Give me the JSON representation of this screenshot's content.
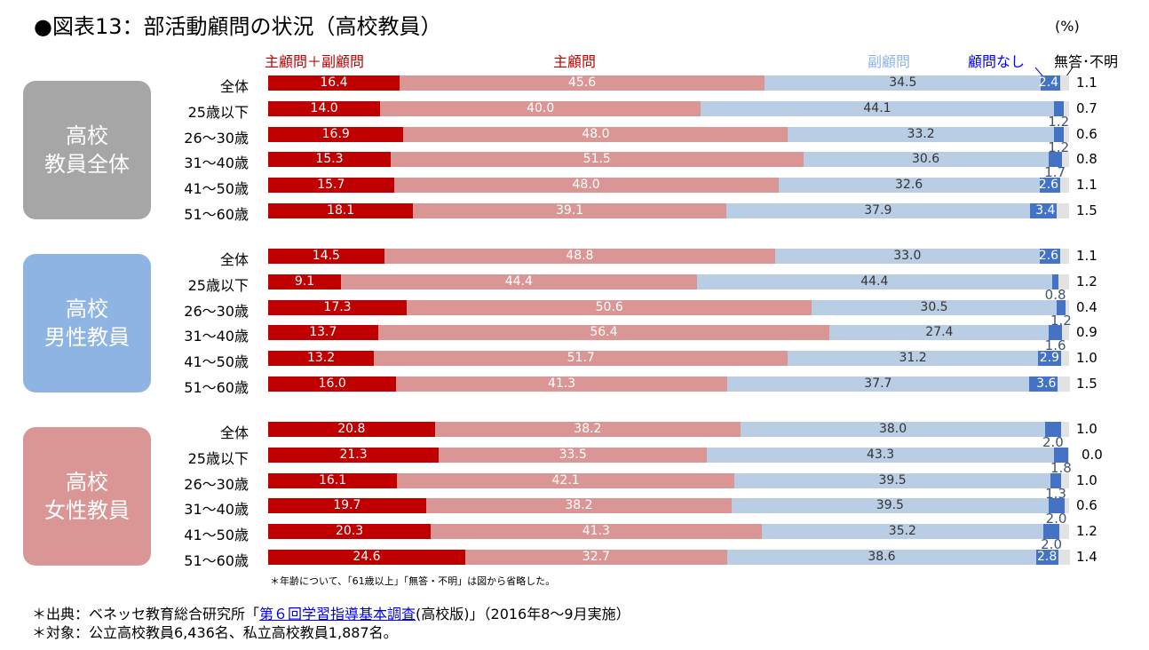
{
  "title": "●図表13：部活動顧問の状況（高校教員）",
  "unit": "(%)",
  "chart_data": {
    "type": "bar",
    "stacked": true,
    "orientation": "horizontal",
    "xlim": [
      0,
      100
    ],
    "legend": [
      "主顧問＋副顧問",
      "主顧問",
      "副顧問",
      "顧問なし",
      "無答･不明"
    ],
    "colors": [
      "#c00000",
      "#d99694",
      "#b9cde4",
      "#4472c4",
      "#e2e2e2"
    ],
    "groups": [
      {
        "label": "高校\n教員全体",
        "color": "#a6a6a6",
        "rows": [
          {
            "category": "全体",
            "values": [
              16.4,
              45.6,
              34.5,
              2.4,
              1.1
            ]
          },
          {
            "category": "25歳以下",
            "values": [
              14.0,
              40.0,
              44.1,
              1.2,
              0.7
            ]
          },
          {
            "category": "26～30歳",
            "values": [
              16.9,
              48.0,
              33.2,
              1.2,
              0.6
            ]
          },
          {
            "category": "31～40歳",
            "values": [
              15.3,
              51.5,
              30.6,
              1.7,
              0.8
            ]
          },
          {
            "category": "41～50歳",
            "values": [
              15.7,
              48.0,
              32.6,
              2.6,
              1.1
            ]
          },
          {
            "category": "51～60歳",
            "values": [
              18.1,
              39.1,
              37.9,
              3.4,
              1.5
            ]
          }
        ]
      },
      {
        "label": "高校\n男性教員",
        "color": "#8eb4e3",
        "rows": [
          {
            "category": "全体",
            "values": [
              14.5,
              48.8,
              33.0,
              2.6,
              1.1
            ]
          },
          {
            "category": "25歳以下",
            "values": [
              9.1,
              44.4,
              44.4,
              0.8,
              1.2
            ]
          },
          {
            "category": "26～30歳",
            "values": [
              17.3,
              50.6,
              30.5,
              1.2,
              0.4
            ]
          },
          {
            "category": "31～40歳",
            "values": [
              13.7,
              56.4,
              27.4,
              1.6,
              0.9
            ]
          },
          {
            "category": "41～50歳",
            "values": [
              13.2,
              51.7,
              31.2,
              2.9,
              1.0
            ]
          },
          {
            "category": "51～60歳",
            "values": [
              16.0,
              41.3,
              37.7,
              3.6,
              1.5
            ]
          }
        ]
      },
      {
        "label": "高校\n女性教員",
        "color": "#d99694",
        "rows": [
          {
            "category": "全体",
            "values": [
              20.8,
              38.2,
              38.0,
              2.0,
              1.0
            ]
          },
          {
            "category": "25歳以下",
            "values": [
              21.3,
              33.5,
              43.3,
              1.8,
              0.0
            ]
          },
          {
            "category": "26～30歳",
            "values": [
              16.1,
              42.1,
              39.5,
              1.3,
              1.0
            ]
          },
          {
            "category": "31～40歳",
            "values": [
              19.7,
              38.2,
              39.5,
              2.0,
              0.6
            ]
          },
          {
            "category": "41～50歳",
            "values": [
              20.3,
              41.3,
              35.2,
              2.0,
              1.2
            ]
          },
          {
            "category": "51～60歳",
            "values": [
              24.6,
              32.7,
              38.6,
              2.8,
              1.4
            ]
          }
        ]
      }
    ]
  },
  "note": "＊年齢について、「61歳以上」「無答・不明」は図から省略した。",
  "footnotes": {
    "source_prefix": "＊出典：ベネッセ教育総合研究所「",
    "source_link": "第６回学習指導基本調査",
    "source_suffix": "(高校版)」（2016年8～9月実施）",
    "target": "＊対象：公立高校教員6,436名、私立高校教員1,887名。"
  }
}
